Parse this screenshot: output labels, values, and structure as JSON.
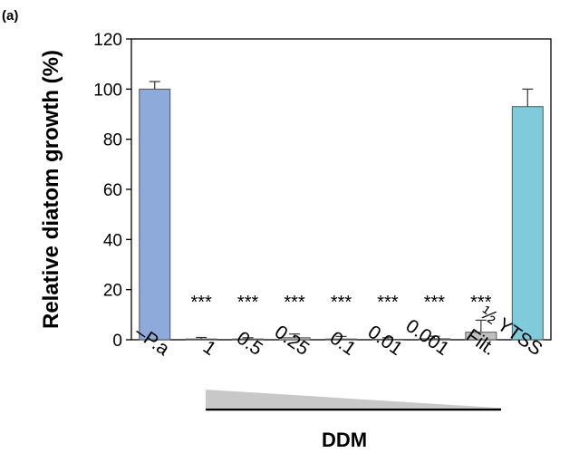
{
  "panel_label": "(a)",
  "chart_data": {
    "type": "bar",
    "ylabel": "Relative diatom growth (%)",
    "ylim": [
      0,
      120
    ],
    "yticks": [
      0,
      20,
      40,
      60,
      80,
      100,
      120
    ],
    "categories": [
      "–P.a",
      "1",
      "0.5",
      "0.25",
      "0.1",
      "0.01",
      "0.001",
      "Filt.",
      "½ YTSS"
    ],
    "values": [
      100,
      0.3,
      0.3,
      0.8,
      0.3,
      0.2,
      0.4,
      3.0,
      93
    ],
    "errors": [
      3,
      0.6,
      0.5,
      1.5,
      1.0,
      0.6,
      1.0,
      4.8,
      7
    ],
    "significance": [
      "",
      "***",
      "***",
      "***",
      "***",
      "***",
      "***",
      "***",
      ""
    ],
    "bar_colors": [
      "#8EAADB",
      "#BFBFBF",
      "#BFBFBF",
      "#BFBFBF",
      "#BFBFBF",
      "#BFBFBF",
      "#BFBFBF",
      "#BFBFBF",
      "#7FCBDB"
    ],
    "group_label": "DDM",
    "grid": false
  }
}
